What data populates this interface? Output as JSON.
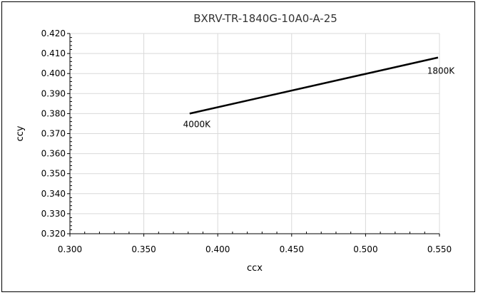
{
  "chart_data": {
    "type": "line",
    "title": "BXRV-TR-1840G-10A0-A-25",
    "xlabel": "ccx",
    "ylabel": "ccy",
    "xlim": [
      0.3,
      0.55
    ],
    "ylim": [
      0.32,
      0.42
    ],
    "x_ticks": [
      "0.300",
      "0.350",
      "0.400",
      "0.450",
      "0.500",
      "0.550"
    ],
    "y_ticks": [
      "0.320",
      "0.330",
      "0.340",
      "0.350",
      "0.360",
      "0.370",
      "0.380",
      "0.390",
      "0.400",
      "0.410",
      "0.420"
    ],
    "grid": true,
    "series": [
      {
        "x": [
          0.381,
          0.549
        ],
        "y": [
          0.38,
          0.408
        ]
      }
    ],
    "annotations": [
      {
        "text": "4000K",
        "x": 0.381,
        "y": 0.38
      },
      {
        "text": "1800K",
        "x": 0.549,
        "y": 0.408
      }
    ],
    "colors": {
      "line": "#000000",
      "grid": "#d9d9d9",
      "border": "#000000"
    }
  }
}
